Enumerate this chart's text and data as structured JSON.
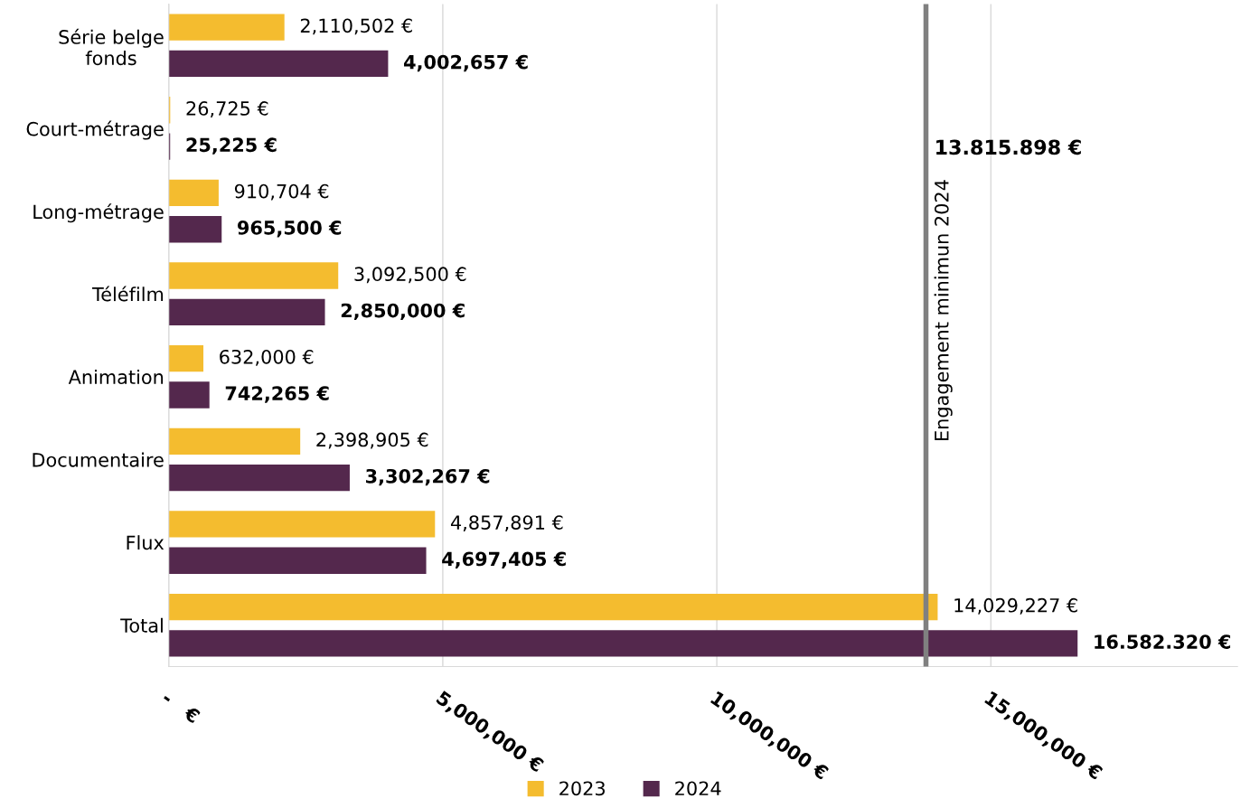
{
  "chart_data": {
    "type": "bar",
    "orientation": "horizontal",
    "categories": [
      "Série belge\nfonds",
      "Court-métrage",
      "Long-métrage",
      "Téléfilm",
      "Animation",
      "Documentaire",
      "Flux",
      "Total"
    ],
    "series": [
      {
        "name": "2023",
        "color": "#f4bc2f",
        "values": [
          2110502,
          26725,
          910704,
          3092500,
          632000,
          2398905,
          4857891,
          14029227
        ],
        "value_labels": [
          "2,110,502 €",
          "26,725 €",
          "910,704 €",
          "3,092,500 €",
          "632,000 €",
          "2,398,905 €",
          "4,857,891 €",
          "14,029,227 €"
        ]
      },
      {
        "name": "2024",
        "color": "#54284d",
        "values": [
          4002657,
          25225,
          965500,
          2850000,
          742265,
          3302267,
          4697405,
          16582320
        ],
        "value_labels": [
          "4,002,657 €",
          "25,225 €",
          "965,500 €",
          "2,850,000 €",
          "742,265 €",
          "3,302,267 €",
          "4,697,405 €",
          "16.582.320 €"
        ]
      }
    ],
    "xlim": [
      0,
      19500000
    ],
    "xticks": [
      {
        "value": 0,
        "label": "-   €"
      },
      {
        "value": 5000000,
        "label": "5,000,000 €"
      },
      {
        "value": 10000000,
        "label": "10,000,000 €"
      },
      {
        "value": 15000000,
        "label": "15,000,000 €"
      }
    ],
    "grid": "x",
    "legend": "bottom",
    "ref_lines": [
      {
        "axis": "x",
        "value": 13815898,
        "label": "Engagement minimun 2024",
        "color": "#808080"
      }
    ],
    "annotations": [
      {
        "text": "13.815.898 €",
        "x": 13815898,
        "y": "Court-métrage"
      }
    ]
  }
}
